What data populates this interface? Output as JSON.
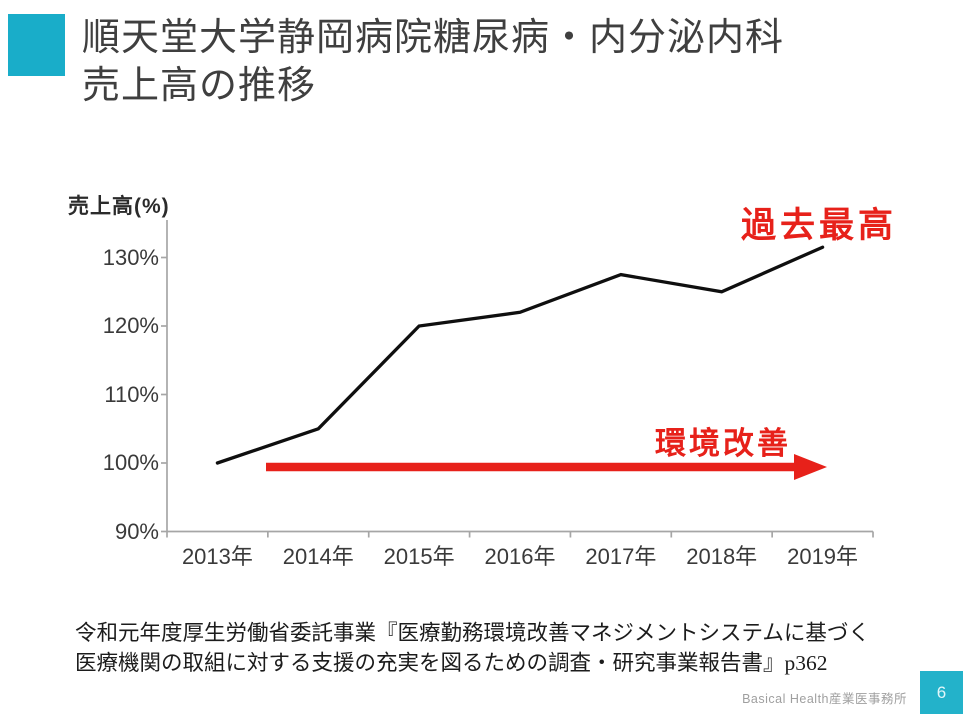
{
  "slide": {
    "title_line1": "順天堂大学静岡病院糖尿病・内分泌内科",
    "title_line2": "売上高の推移",
    "source_line1": "令和元年度厚生労働省委託事業『医療勤務環境改善マネジメントシステムに基づく",
    "source_line2": "医療機関の取組に対する支援の充実を図るための調査・研究事業報告書』p362",
    "footer_brand": "Basical Health産業医事務所",
    "page_number": "6",
    "accent_color": "#19adc9"
  },
  "annotations": {
    "peak_label": "過去最高",
    "arrow_label": "環境改善",
    "annotation_color": "#e7211a"
  },
  "chart_data": {
    "type": "line",
    "title": "",
    "ylabel": "売上高(%)",
    "xlabel": "",
    "categories": [
      "2013年",
      "2014年",
      "2015年",
      "2016年",
      "2017年",
      "2018年",
      "2019年"
    ],
    "series": [
      {
        "name": "売上高",
        "values": [
          100,
          105,
          120,
          122,
          127.5,
          125,
          131.5
        ],
        "color": "#0f0f0f"
      }
    ],
    "ylim": [
      90,
      135
    ],
    "yticks": [
      130,
      120,
      110,
      100,
      90
    ],
    "ytick_suffix": "%",
    "grid": false,
    "legend": "none",
    "axis_color": "#a6a6a6"
  }
}
